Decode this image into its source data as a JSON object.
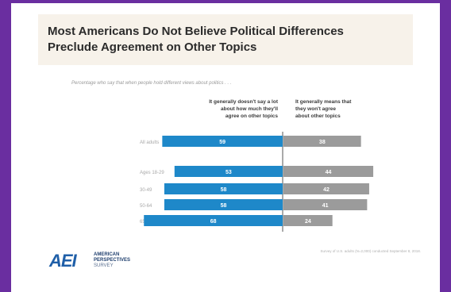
{
  "chart_data": {
    "type": "bar",
    "title_line1": "Most Americans Do Not Believe Political Differences",
    "title_line2": "Preclude  Agreement on Other Topics",
    "subtitle": "Percentage who say that when people hold different views about politics . . .",
    "categories": [
      "All adults",
      "Ages 18-29",
      "30-49",
      "50-64",
      "65 and older"
    ],
    "series": [
      {
        "name_lines": [
          "It generally doesn't say a lot",
          "about how much they'll",
          "agree on other topics"
        ],
        "values": [
          59,
          53,
          58,
          58,
          68
        ],
        "color": "#1e88c9"
      },
      {
        "name_lines": [
          "It generally means that",
          "they won't agree",
          "about other topics"
        ],
        "values": [
          38,
          44,
          42,
          41,
          24
        ],
        "color": "#9b9b9b"
      }
    ],
    "xlim": [
      0,
      100
    ]
  },
  "branding": {
    "logo_mark": "AEI",
    "logo_line1": "AMERICAN",
    "logo_line2": "PERSPECTIVES",
    "logo_line3": "SURVEY",
    "brand_color": "#1f5fa8"
  },
  "source": "Survey of U.S. adults (N=2,000) conducted September 8, 2018."
}
